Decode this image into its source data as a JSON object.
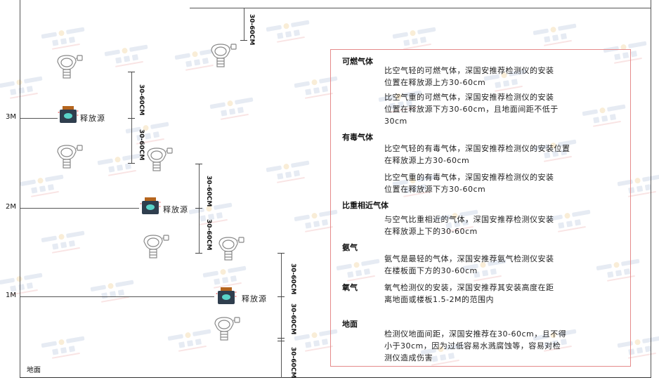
{
  "levels": {
    "m3": "3M",
    "m2": "2M",
    "m1": "1M",
    "ground": "地面"
  },
  "source_label": "释放源",
  "dimension_label": "30-60CM",
  "watermark": {
    "en": "SINGOAN",
    "cn": "深国安"
  },
  "colors": {
    "box_border": "#e58a8a",
    "source_body": "#2f3e4e",
    "source_cap": "#b5651d",
    "source_face": "#5ad3c8",
    "watermark": "#c9d3e6"
  },
  "info": {
    "combustible": {
      "title": "可燃气体",
      "light": "比空气轻的可燃气体，深国安推荐检测仪的安装\n位置在释放源上方30-60cm",
      "heavy": "比空气重的可燃气体，深国安推荐检测仪的安装\n位置在释放源下方30-60cm，且地面间距不低于\n30cm"
    },
    "toxic": {
      "title": "有毒气体",
      "light": "比空气轻的有毒气体，深国安推荐检测仪的安装位置\n在释放源上方30-60cm",
      "heavy": "比空气重的有毒气体，深国安推荐检测仪的安装\n位置在释放源下方30-60cm"
    },
    "similar": {
      "title": "比重相近气体",
      "text": "与空气比重相近的气体，深国安推荐检测仪安装\n在释放源上下的30-60cm"
    },
    "ammonia": {
      "title": "氨气",
      "text": "氨气是最轻的气体，深国安推荐氨气检测仪安装\n在楼板面下方的30-60cm"
    },
    "oxygen": {
      "title": "氧气",
      "text": "氧气检测仪的安装，深国安推荐其安装高度在距\n离地面或楼板1.5-2M的范围内"
    },
    "ground": {
      "title": "地面",
      "text": "检测仪地面间距，深国安推荐在30-60cm，且不得\n小于30cm，因为过低容易水溅腐蚀等，容易对检\n测仪造成伤害"
    }
  }
}
